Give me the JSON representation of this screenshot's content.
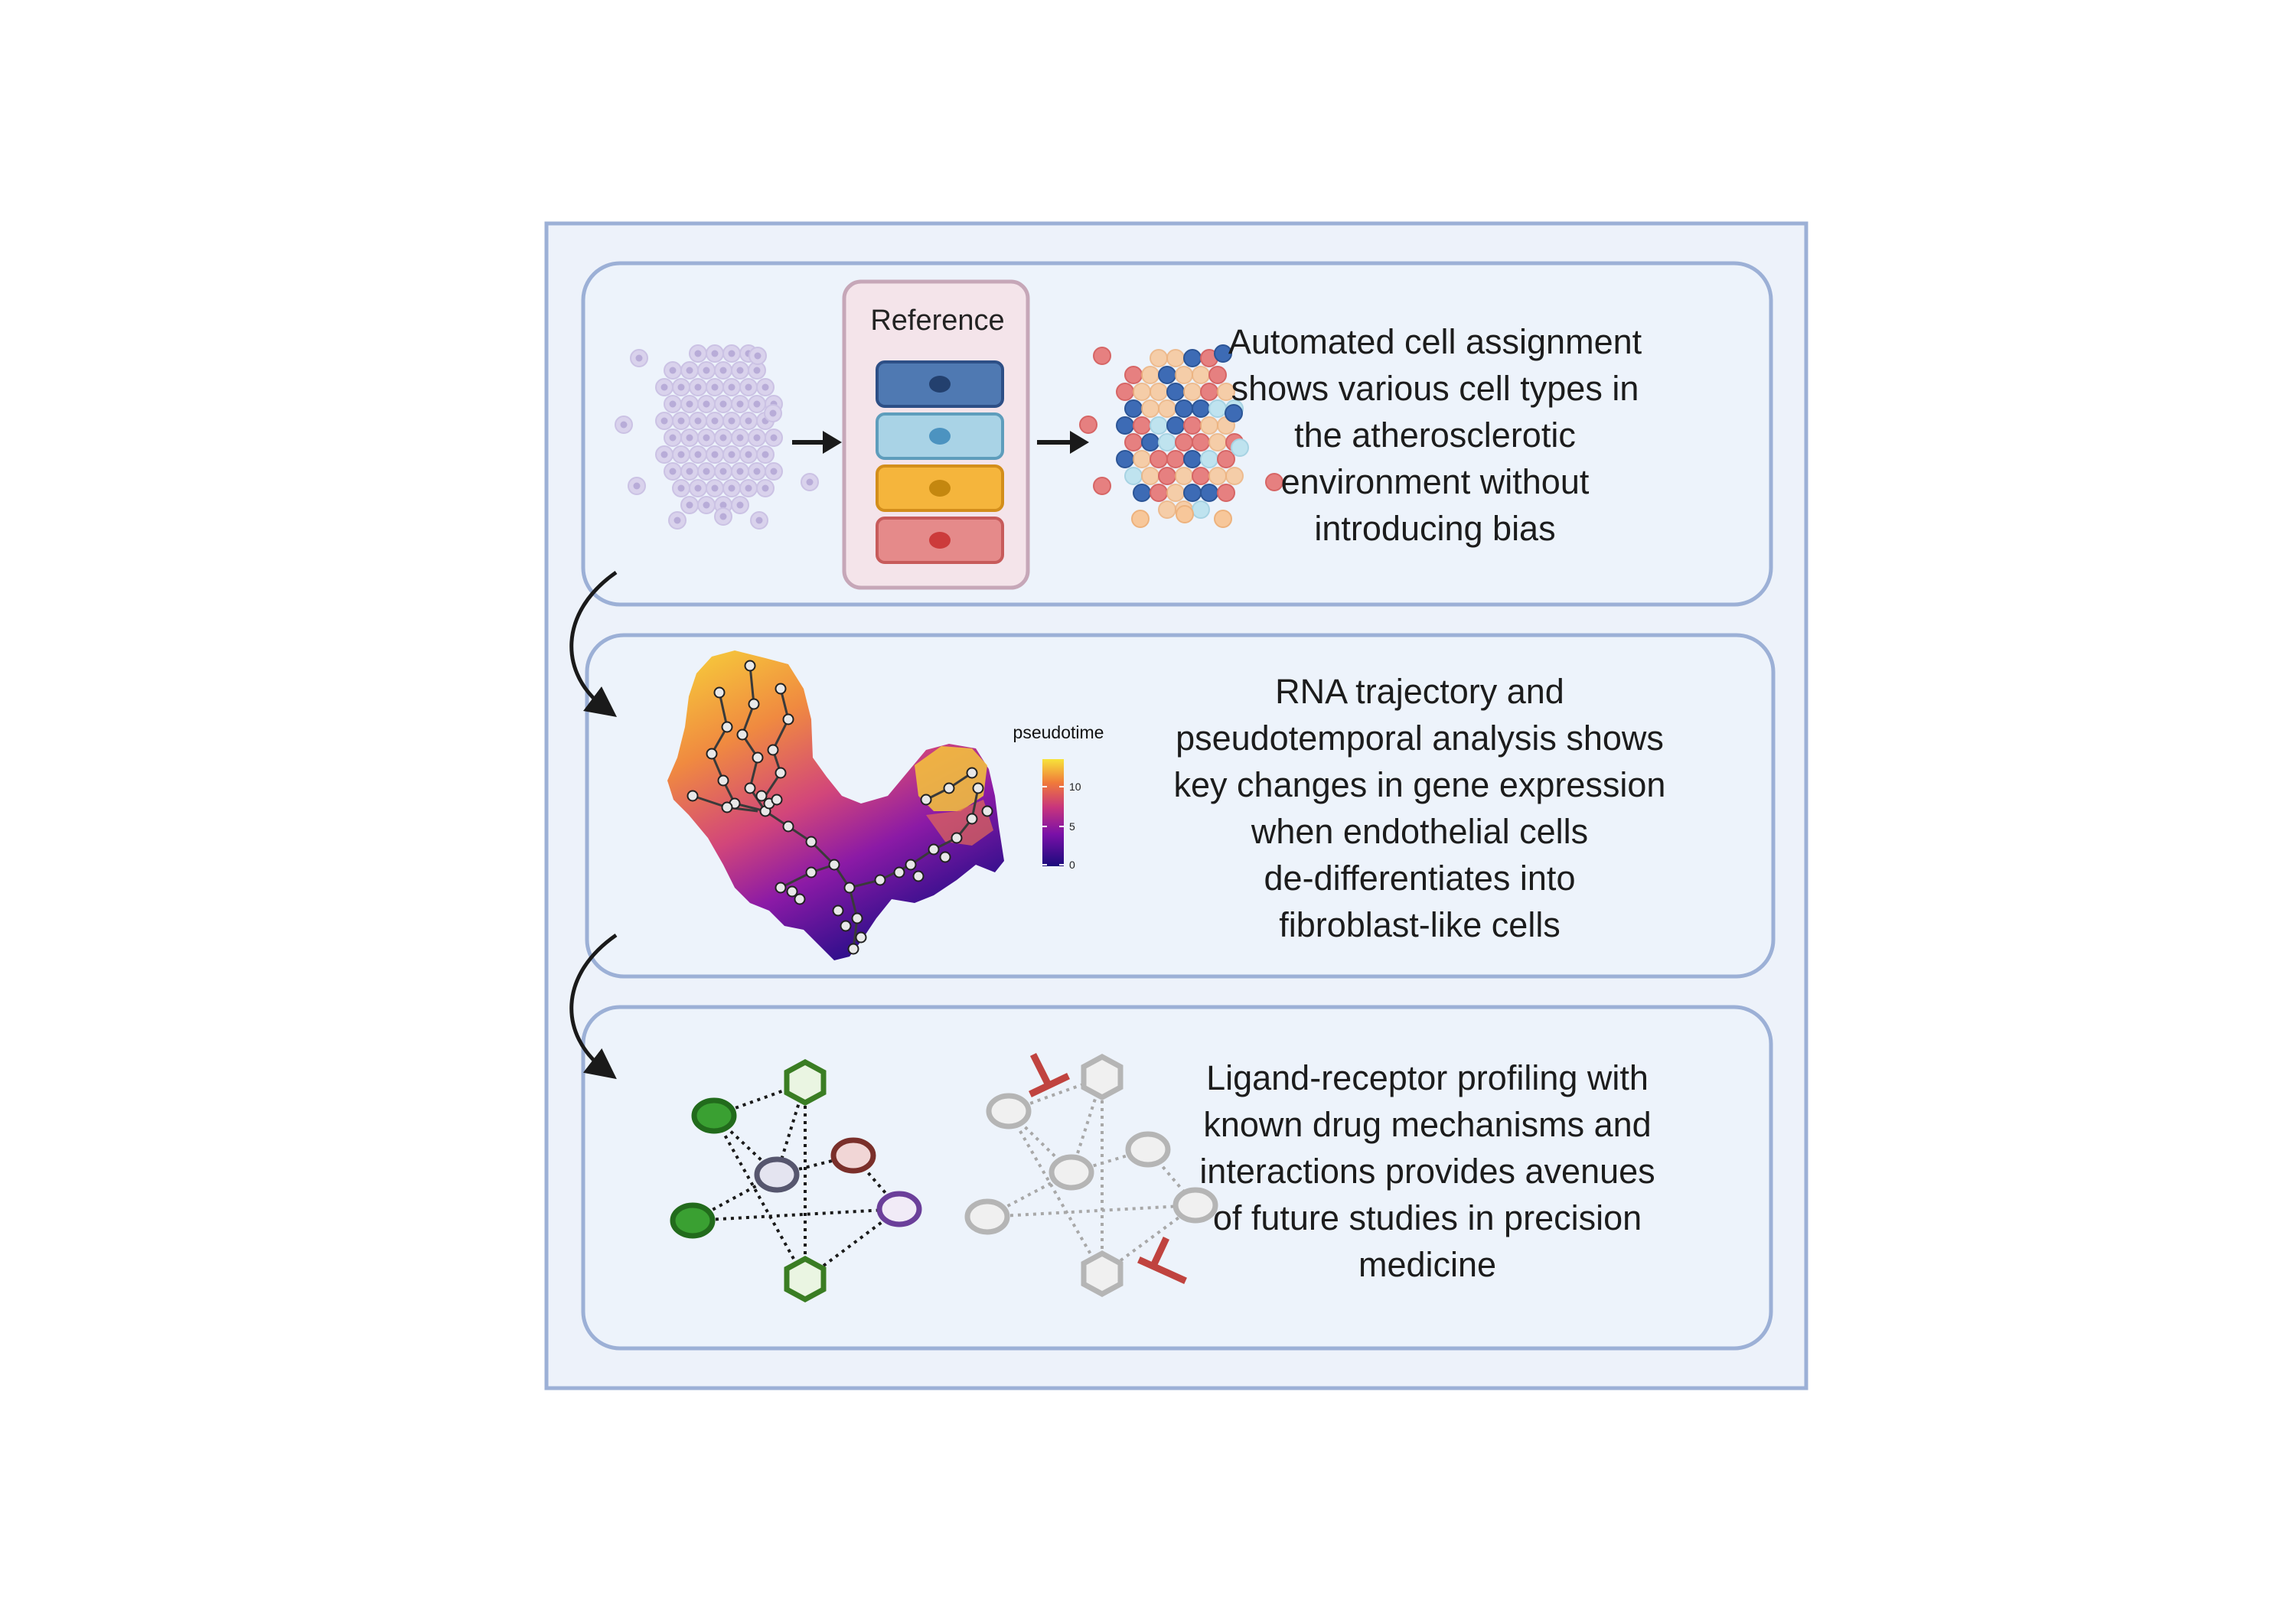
{
  "panel1": {
    "reference_title": "Reference",
    "text_lines": [
      "Automated cell assignment",
      "shows various cell types in",
      "the atherosclerotic",
      "environment without",
      "introducing bias"
    ],
    "reference_cell_colors": [
      "#4f79b2",
      "#a9d3e6",
      "#f5b53c",
      "#e58a8a"
    ],
    "mapped_cell_colors": [
      "#3d6bb5",
      "#e68080",
      "#f7c79a",
      "#bfe3ef"
    ]
  },
  "panel2": {
    "legend_title": "pseudotime",
    "legend_ticks": [
      "10",
      "5",
      "0"
    ],
    "text_lines": [
      "RNA trajectory and",
      "pseudotemporal analysis shows",
      "key changes in gene expression",
      "when endothelial cells",
      "de-differentiates into",
      "fibroblast-like cells"
    ]
  },
  "panel3": {
    "text_lines": [
      "Ligand-receptor profiling with",
      "known drug mechanisms and",
      "interactions provides avenues",
      "of future studies in precision",
      "medicine"
    ],
    "colors": {
      "hexagon": "#3a7d23",
      "ligand_fill": "#3aa032",
      "receptor_grey": "#8a8aa8",
      "receptor_brown": "#8c3a3a",
      "receptor_purple": "#6b3f9a",
      "inactive": "#b5b5b5",
      "inhibitor": "#c0433f"
    }
  }
}
